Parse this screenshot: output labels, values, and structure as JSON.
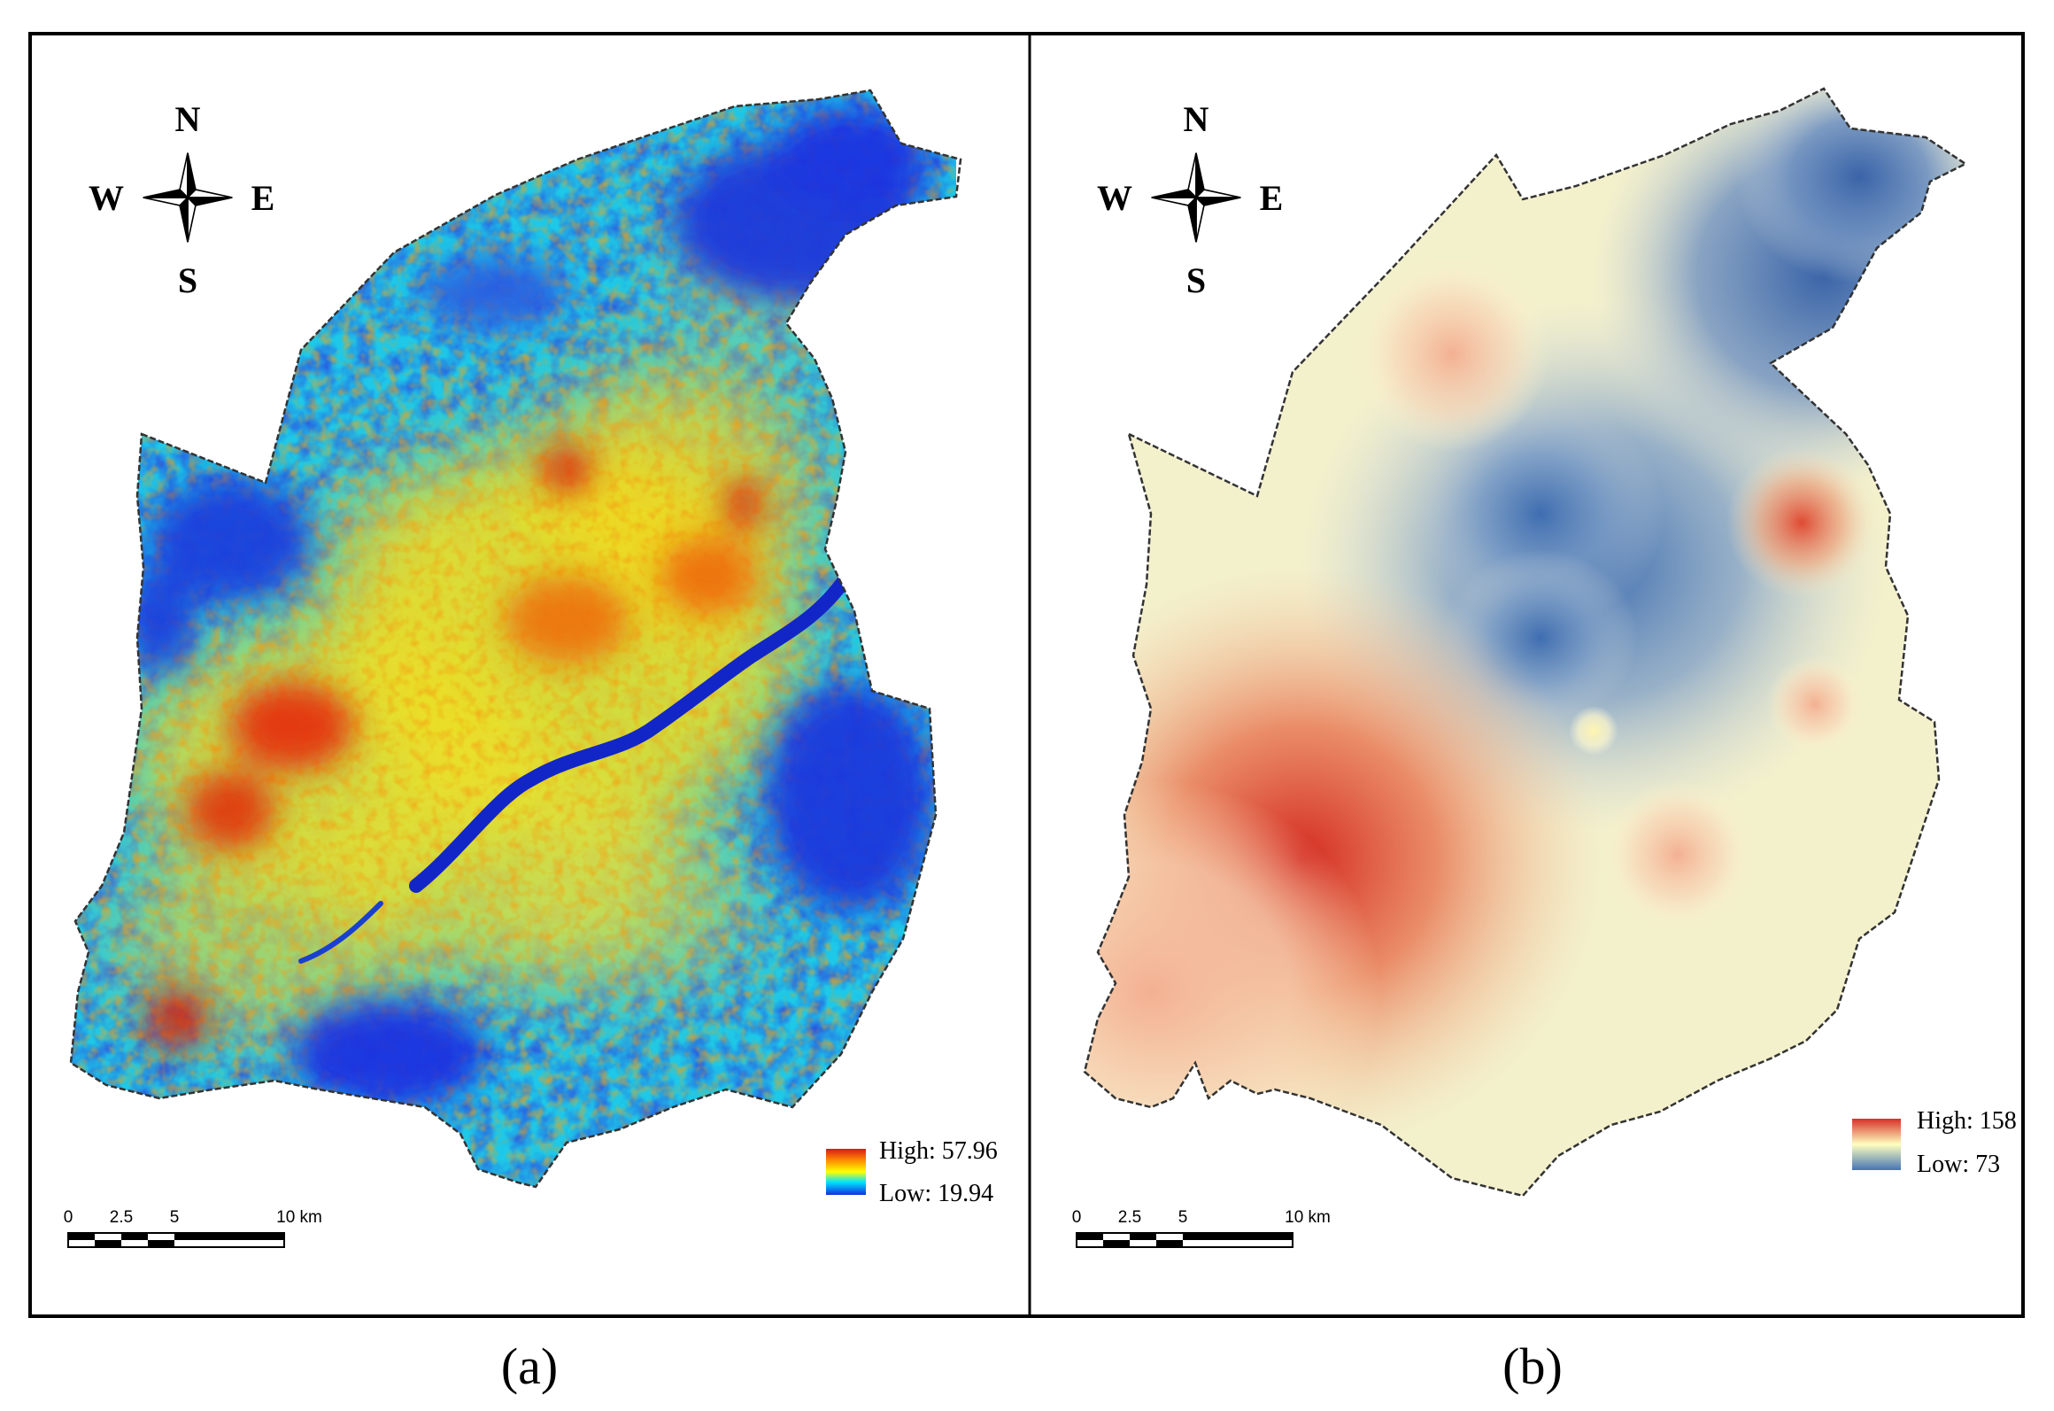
{
  "panels": [
    {
      "caption": "(a)",
      "compass": {
        "n": "N",
        "s": "S",
        "e": "E",
        "w": "W"
      },
      "scale_bar": {
        "ticks": [
          "0",
          "2.5",
          "5",
          "10 km"
        ]
      },
      "legend": {
        "high_label": "High: 57.96",
        "low_label": "Low: 19.94",
        "colors": [
          "#d7191c",
          "#ff8c00",
          "#ffff00",
          "#00e5ff",
          "#1030e0"
        ]
      }
    },
    {
      "caption": "(b)",
      "compass": {
        "n": "N",
        "s": "S",
        "e": "E",
        "w": "W"
      },
      "scale_bar": {
        "ticks": [
          "0",
          "2.5",
          "5",
          "10 km"
        ]
      },
      "legend": {
        "high_label": "High: 158",
        "low_label": "Low: 73",
        "colors": [
          "#d73027",
          "#ffffbf",
          "#4575b4"
        ]
      }
    }
  ]
}
